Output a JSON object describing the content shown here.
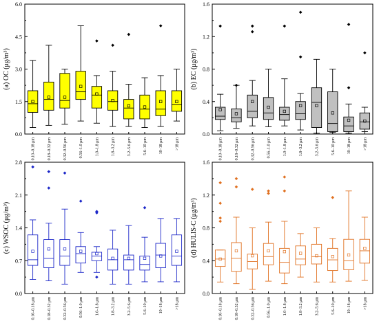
{
  "chart_data": [
    {
      "type": "box",
      "panel": "a",
      "ylabel": "(a) OC (μg/m³)",
      "ylim": [
        0.0,
        6.0
      ],
      "yticks": [
        0.0,
        1.5,
        3.0,
        4.5,
        6.0
      ],
      "ytick_labels": [
        "0.0",
        "1.5",
        "3.0",
        "4.5",
        "6.0"
      ],
      "colors": {
        "fill": "#ffff00",
        "stroke": "#000000"
      },
      "categories": [
        "0.10–0.18 μm",
        "0.18–0.32 μm",
        "0.32–0.56 μm",
        "0.56–1.0 μm",
        "1.0–1.8 μm",
        "1.8–3.2 μm",
        "3.2–5.6 μm",
        "5.6–10 μm",
        "10–18 μm",
        ">18 μm"
      ],
      "boxes": [
        {
          "whisker_low": 0.3,
          "q1": 1.0,
          "median": 1.4,
          "q3": 2.0,
          "whisker_high": 3.4,
          "mean": 1.5,
          "outliers": []
        },
        {
          "whisker_low": 0.4,
          "q1": 1.1,
          "median": 1.6,
          "q3": 2.4,
          "whisker_high": 4.1,
          "mean": 1.7,
          "outliers": []
        },
        {
          "whisker_low": 0.45,
          "q1": 1.2,
          "median": 1.55,
          "q3": 2.8,
          "whisker_high": 3.0,
          "mean": 1.7,
          "outliers": []
        },
        {
          "whisker_low": 0.6,
          "q1": 1.6,
          "median": 1.95,
          "q3": 2.9,
          "whisker_high": 5.0,
          "mean": 2.2,
          "outliers": []
        },
        {
          "whisker_low": 0.5,
          "q1": 1.2,
          "median": 1.8,
          "q3": 2.2,
          "whisker_high": 2.7,
          "mean": 1.85,
          "outliers": [
            4.3
          ]
        },
        {
          "whisker_low": 0.35,
          "q1": 1.1,
          "median": 1.5,
          "q3": 2.0,
          "whisker_high": 2.9,
          "mean": 1.55,
          "outliers": [
            4.1
          ]
        },
        {
          "whisker_low": 0.35,
          "q1": 0.7,
          "median": 1.2,
          "q3": 1.6,
          "whisker_high": 2.3,
          "mean": 1.3,
          "outliers": [
            4.6
          ]
        },
        {
          "whisker_low": 0.3,
          "q1": 0.7,
          "median": 1.15,
          "q3": 1.8,
          "whisker_high": 2.6,
          "mean": 1.25,
          "outliers": []
        },
        {
          "whisker_low": 0.35,
          "q1": 0.85,
          "median": 1.15,
          "q3": 2.0,
          "whisker_high": 2.7,
          "mean": 1.5,
          "outliers": [
            5.0
          ]
        },
        {
          "whisker_low": 0.6,
          "q1": 1.05,
          "median": 1.35,
          "q3": 2.0,
          "whisker_high": 3.0,
          "mean": 1.5,
          "outliers": []
        }
      ]
    },
    {
      "type": "box",
      "panel": "b",
      "ylabel": "(b) EC (μg/m³)",
      "ylim": [
        0.0,
        1.6
      ],
      "yticks": [
        0.0,
        0.4,
        0.8,
        1.2,
        1.6
      ],
      "ytick_labels": [
        "0.0",
        "0.4",
        "0.8",
        "1.2",
        "1.6"
      ],
      "colors": {
        "fill": "#c0c0c0",
        "stroke": "#000000"
      },
      "categories": [
        "0.10–0.18 μm",
        "0.18–0.32 μm",
        "0.32–0.56 μm",
        "0.56–1.0 μm",
        "1.0–1.8 μm",
        "1.8–3.2 μm",
        "3.2–5.6 μm",
        "5.6–10 μm",
        "10–18 μm",
        ">18 μm"
      ],
      "boxes": [
        {
          "whisker_low": 0.04,
          "q1": 0.18,
          "median": 0.22,
          "q3": 0.33,
          "whisker_high": 0.49,
          "mean": 0.3,
          "outliers": [
            1.33
          ]
        },
        {
          "whisker_low": 0.07,
          "q1": 0.15,
          "median": 0.2,
          "q3": 0.31,
          "whisker_high": 0.6,
          "mean": 0.25,
          "outliers": [
            0.6
          ]
        },
        {
          "whisker_low": 0.1,
          "q1": 0.2,
          "median": 0.28,
          "q3": 0.48,
          "whisker_high": 0.66,
          "mean": 0.4,
          "outliers": [
            1.33,
            1.26
          ]
        },
        {
          "whisker_low": 0.09,
          "q1": 0.18,
          "median": 0.26,
          "q3": 0.45,
          "whisker_high": 0.8,
          "mean": 0.33,
          "outliers": []
        },
        {
          "whisker_low": 0.1,
          "q1": 0.17,
          "median": 0.24,
          "q3": 0.33,
          "whisker_high": 0.68,
          "mean": 0.28,
          "outliers": [
            1.33
          ]
        },
        {
          "whisker_low": 0.05,
          "q1": 0.18,
          "median": 0.25,
          "q3": 0.4,
          "whisker_high": 0.5,
          "mean": 0.35,
          "outliers": [
            1.5,
            0.95
          ]
        },
        {
          "whisker_low": 0.01,
          "q1": 0.08,
          "median": 0.39,
          "q3": 0.57,
          "whisker_high": 0.92,
          "mean": 0.35,
          "outliers": []
        },
        {
          "whisker_low": 0.02,
          "q1": 0.03,
          "median": 0.13,
          "q3": 0.52,
          "whisker_high": 0.8,
          "mean": 0.26,
          "outliers": []
        },
        {
          "whisker_low": 0.01,
          "q1": 0.03,
          "median": 0.1,
          "q3": 0.21,
          "whisker_high": 0.37,
          "mean": 0.17,
          "outliers": [
            1.35,
            0.57
          ]
        },
        {
          "whisker_low": 0.03,
          "q1": 0.06,
          "median": 0.15,
          "q3": 0.26,
          "whisker_high": 0.33,
          "mean": 0.16,
          "outliers": [
            1.0
          ]
        }
      ]
    },
    {
      "type": "box",
      "panel": "c",
      "ylabel": "(c) WSOC (μg/m³)",
      "ylim": [
        0.0,
        2.8
      ],
      "yticks": [
        0.0,
        0.7,
        1.4,
        2.1,
        2.8
      ],
      "ytick_labels": [
        "0.0",
        "0.7",
        "1.4",
        "2.1",
        "2.8"
      ],
      "colors": {
        "fill": "none",
        "stroke": "#1c27c8"
      },
      "categories": [
        "0.10–0.18 μm",
        "0.18–0.32 μm",
        "0.32–0.56 μm",
        "0.56–1.0 μm",
        "1.0–1.8 μm",
        "1.8–3.2 μm",
        "3.2–5.6 μm",
        "5.6–10 μm",
        "10–18 μm",
        ">18 μm"
      ],
      "boxes": [
        {
          "whisker_low": 0.3,
          "q1": 0.6,
          "median": 0.72,
          "q3": 1.25,
          "whisker_high": 1.57,
          "mean": 0.9,
          "outliers": [
            2.7
          ]
        },
        {
          "whisker_low": 0.27,
          "q1": 0.55,
          "median": 0.75,
          "q3": 1.15,
          "whisker_high": 1.5,
          "mean": 0.95,
          "outliers": [
            2.6,
            2.25
          ]
        },
        {
          "whisker_low": 0.2,
          "q1": 0.6,
          "median": 0.8,
          "q3": 1.15,
          "whisker_high": 1.8,
          "mean": 0.95,
          "outliers": [
            2.57
          ]
        },
        {
          "whisker_low": 0.45,
          "q1": 0.65,
          "median": 0.85,
          "q3": 1.0,
          "whisker_high": 1.3,
          "mean": 0.9,
          "outliers": [
            1.97
          ]
        },
        {
          "whisker_low": 0.45,
          "q1": 0.7,
          "median": 0.8,
          "q3": 0.88,
          "whisker_high": 1.0,
          "mean": 0.85,
          "outliers": [
            1.75,
            1.72,
            0.35
          ]
        },
        {
          "whisker_low": 0.2,
          "q1": 0.5,
          "median": 0.72,
          "q3": 0.95,
          "whisker_high": 1.35,
          "mean": 0.75,
          "outliers": []
        },
        {
          "whisker_low": 0.2,
          "q1": 0.5,
          "median": 0.72,
          "q3": 0.82,
          "whisker_high": 1.45,
          "mean": 0.75,
          "outliers": []
        },
        {
          "whisker_low": 0.25,
          "q1": 0.5,
          "median": 0.62,
          "q3": 0.8,
          "whisker_high": 1.2,
          "mean": 0.75,
          "outliers": [
            1.83
          ]
        },
        {
          "whisker_low": 0.25,
          "q1": 0.55,
          "median": 0.82,
          "q3": 1.07,
          "whisker_high": 1.6,
          "mean": 0.8,
          "outliers": []
        },
        {
          "whisker_low": 0.25,
          "q1": 0.6,
          "median": 0.8,
          "q3": 1.25,
          "whisker_high": 1.6,
          "mean": 0.9,
          "outliers": []
        }
      ]
    },
    {
      "type": "box",
      "panel": "d",
      "ylabel": "(d) HULIS-C (μg/m³)",
      "ylim": [
        0.0,
        1.6
      ],
      "yticks": [
        0.0,
        0.4,
        0.8,
        1.2,
        1.6
      ],
      "ytick_labels": [
        "0.0",
        "0.4",
        "0.8",
        "1.2",
        "1.6"
      ],
      "colors": {
        "fill": "none",
        "stroke": "#e07020"
      },
      "categories": [
        "0.10–0.18 μm",
        "0.18–0.32 μm",
        "0.32–0.56 μm",
        "0.56–1.0 μm",
        "1.0–1.8 μm",
        "1.8–3.2 μm",
        "3.2–5.6 μm",
        "5.6–10 μm",
        "10–18 μm",
        ">18 μm"
      ],
      "boxes": [
        {
          "whisker_low": 0.14,
          "q1": 0.33,
          "median": 0.42,
          "q3": 0.53,
          "whisker_high": 0.53,
          "mean": 0.42,
          "outliers": [
            1.35,
            1.1,
            0.92,
            0.88
          ]
        },
        {
          "whisker_low": 0.12,
          "q1": 0.27,
          "median": 0.43,
          "q3": 0.62,
          "whisker_high": 0.93,
          "mean": 0.52,
          "outliers": [
            1.4,
            1.3
          ]
        },
        {
          "whisker_low": 0.05,
          "q1": 0.3,
          "median": 0.39,
          "q3": 0.48,
          "whisker_high": 0.8,
          "mean": 0.46,
          "outliers": [
            1.27
          ]
        },
        {
          "whisker_low": 0.15,
          "q1": 0.35,
          "median": 0.45,
          "q3": 0.61,
          "whisker_high": 0.87,
          "mean": 0.52,
          "outliers": [
            1.22,
            1.25
          ]
        },
        {
          "whisker_low": 0.12,
          "q1": 0.25,
          "median": 0.38,
          "q3": 0.55,
          "whisker_high": 0.88,
          "mean": 0.51,
          "outliers": [
            1.42,
            1.25
          ]
        },
        {
          "whisker_low": 0.2,
          "q1": 0.35,
          "median": 0.42,
          "q3": 0.58,
          "whisker_high": 0.73,
          "mean": 0.49,
          "outliers": []
        },
        {
          "whisker_low": 0.14,
          "q1": 0.36,
          "median": 0.45,
          "q3": 0.6,
          "whisker_high": 0.8,
          "mean": 0.46,
          "outliers": []
        },
        {
          "whisker_low": 0.14,
          "q1": 0.28,
          "median": 0.41,
          "q3": 0.55,
          "whisker_high": 0.67,
          "mean": 0.45,
          "outliers": [
            1.17
          ]
        },
        {
          "whisker_low": 0.15,
          "q1": 0.29,
          "median": 0.4,
          "q3": 0.66,
          "whisker_high": 1.25,
          "mean": 0.47,
          "outliers": []
        },
        {
          "whisker_low": 0.16,
          "q1": 0.37,
          "median": 0.52,
          "q3": 0.66,
          "whisker_high": 0.93,
          "mean": 0.55,
          "outliers": []
        }
      ]
    }
  ]
}
